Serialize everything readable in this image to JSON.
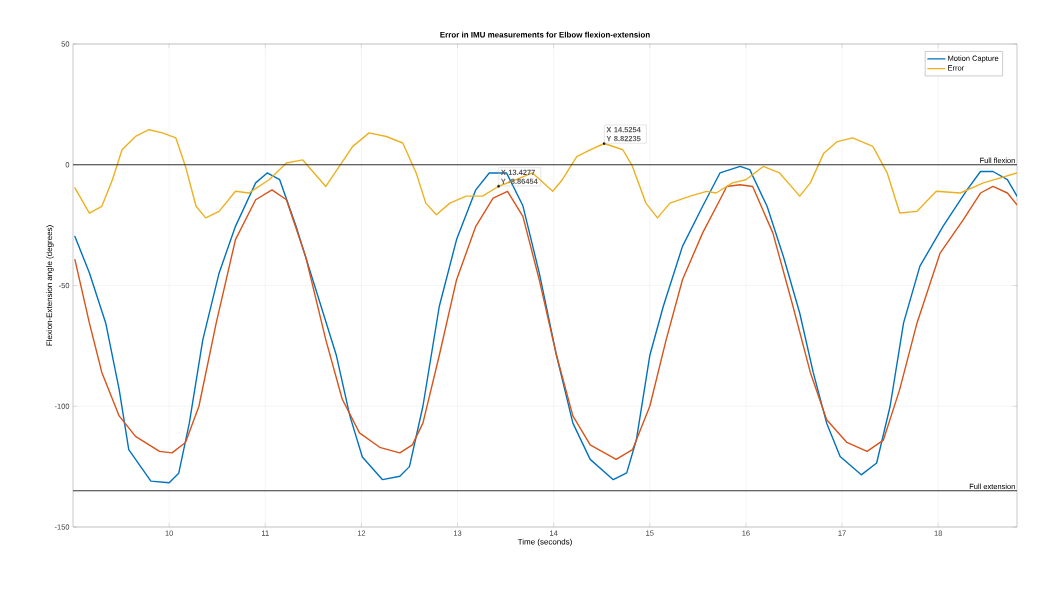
{
  "chart_data": {
    "type": "line",
    "title": "Error in IMU measurements for Elbow flexion-extension",
    "xlabel": "Time (seconds)",
    "ylabel": "Flexion-Extension angle (degrees)",
    "xlim": [
      9,
      18.82
    ],
    "ylim": [
      -150,
      50
    ],
    "xticks": [
      10,
      11,
      12,
      13,
      14,
      15,
      16,
      17,
      18
    ],
    "yticks": [
      -150,
      -100,
      -50,
      0,
      50
    ],
    "grid": true,
    "legend": "top right",
    "series": [
      {
        "name": "Motion Capture",
        "color": "#0072bd",
        "x": [
          9.02,
          9.17,
          9.34,
          9.48,
          9.58,
          9.81,
          10.0,
          10.1,
          10.21,
          10.35,
          10.52,
          10.69,
          10.9,
          11.02,
          11.15,
          11.32,
          11.56,
          11.74,
          11.88,
          12.01,
          12.22,
          12.4,
          12.5,
          12.64,
          12.81,
          12.99,
          13.19,
          13.33,
          13.51,
          13.68,
          13.85,
          14.03,
          14.2,
          14.38,
          14.62,
          14.76,
          14.86,
          15.0,
          15.14,
          15.34,
          15.55,
          15.73,
          15.94,
          16.04,
          16.22,
          16.39,
          16.56,
          16.7,
          16.84,
          16.98,
          17.2,
          17.36,
          17.5,
          17.64,
          17.81,
          18.05,
          18.3,
          18.44,
          18.57,
          18.72,
          18.82
        ],
        "values": [
          -29.7,
          -44.7,
          -65.5,
          -93,
          -118,
          -131,
          -131.7,
          -127.7,
          -107,
          -72.5,
          -44.8,
          -25.5,
          -7.5,
          -3.4,
          -6.2,
          -25.5,
          -56,
          -79,
          -104,
          -121,
          -130.4,
          -129,
          -125,
          -100,
          -58.7,
          -31,
          -10.4,
          -3.4,
          -3.4,
          -17,
          -44.8,
          -79,
          -107,
          -122,
          -130.4,
          -127.6,
          -114,
          -79,
          -58.7,
          -33.8,
          -17.2,
          -3.4,
          -0.7,
          -2,
          -17.2,
          -38,
          -61.5,
          -86,
          -107,
          -120.8,
          -128.4,
          -123.5,
          -100,
          -65.5,
          -42,
          -25.5,
          -10.4,
          -2.8,
          -2.8,
          -6.2,
          -13
        ]
      },
      {
        "color": "#d95319",
        "x": [
          9.02,
          9.17,
          9.3,
          9.48,
          9.65,
          9.9,
          10.03,
          10.17,
          10.31,
          10.49,
          10.69,
          10.9,
          11.07,
          11.22,
          11.42,
          11.63,
          11.8,
          11.98,
          12.19,
          12.4,
          12.53,
          12.64,
          12.81,
          12.99,
          13.19,
          13.37,
          13.52,
          13.68,
          13.85,
          14.03,
          14.2,
          14.38,
          14.65,
          14.82,
          15.0,
          15.17,
          15.34,
          15.55,
          15.73,
          15.8,
          15.94,
          16.07,
          16.28,
          16.49,
          16.67,
          16.84,
          17.05,
          17.26,
          17.43,
          17.6,
          17.78,
          18.02,
          18.26,
          18.44,
          18.57,
          18.72,
          18.82
        ],
        "values": [
          -39.3,
          -65.5,
          -86,
          -104,
          -112.5,
          -118.7,
          -119.3,
          -115,
          -100,
          -65.5,
          -31,
          -14.5,
          -10.4,
          -14.5,
          -38,
          -72.5,
          -97,
          -111,
          -117,
          -119.3,
          -116,
          -107,
          -79,
          -47.6,
          -25.5,
          -13.8,
          -11,
          -21.4,
          -47.6,
          -79,
          -104,
          -116,
          -122,
          -118,
          -100,
          -72.5,
          -47.6,
          -28.2,
          -14.5,
          -9,
          -8.3,
          -9,
          -28.2,
          -58.7,
          -86,
          -105.6,
          -115,
          -118.7,
          -114,
          -93,
          -65.5,
          -36.6,
          -22.8,
          -11.7,
          -9,
          -11.7,
          -16.6
        ]
      },
      {
        "name": "Error",
        "color": "#edb120",
        "x": [
          9.02,
          9.17,
          9.3,
          9.41,
          9.51,
          9.65,
          9.79,
          9.93,
          10.07,
          10.17,
          10.28,
          10.38,
          10.52,
          10.69,
          10.83,
          11.04,
          11.22,
          11.39,
          11.63,
          11.77,
          11.91,
          12.08,
          12.26,
          12.43,
          12.57,
          12.67,
          12.78,
          12.92,
          13.09,
          13.26,
          13.4277,
          13.61,
          13.78,
          13.99,
          14.09,
          14.24,
          14.38,
          14.5254,
          14.72,
          14.82,
          14.96,
          15.08,
          15.21,
          15.42,
          15.59,
          15.69,
          15.86,
          16.0,
          16.18,
          16.35,
          16.56,
          16.67,
          16.81,
          16.95,
          17.11,
          17.32,
          17.47,
          17.6,
          17.78,
          17.98,
          18.23,
          18.47,
          18.82
        ],
        "values": [
          -9.6,
          -20,
          -17.2,
          -6.2,
          6.2,
          11.7,
          14.5,
          13.2,
          11.1,
          -0.7,
          -17.2,
          -22,
          -19.3,
          -11,
          -11.7,
          -6.2,
          0.7,
          2,
          -9,
          -0.7,
          7.6,
          13.2,
          11.7,
          9,
          -3.4,
          -15.9,
          -20.7,
          -15.9,
          -13,
          -13,
          -8.9,
          -6.2,
          -3.4,
          -11,
          -6.2,
          3.4,
          6.2,
          8.8,
          6.2,
          -0.7,
          -15.9,
          -22,
          -15.9,
          -13,
          -11,
          -11.7,
          -7.5,
          -6.2,
          -0.7,
          -3.4,
          -13,
          -7.5,
          4.8,
          9.6,
          11.1,
          7.6,
          -3.4,
          -20,
          -19.3,
          -11,
          -11.7,
          -7.5,
          -3.4
        ]
      }
    ],
    "ref_lines": [
      {
        "axis": "y",
        "value": 0,
        "label": "Full flexion",
        "color": "#333333"
      },
      {
        "axis": "y",
        "value": -135,
        "label": "Full extension",
        "color": "#333333"
      }
    ],
    "annotations": [
      {
        "text": "X 13.4277 Y -8.86454",
        "x": 13.4277,
        "y": -8.86454
      },
      {
        "text": "X 14.5254 Y 8.82235",
        "x": 14.5254,
        "y": 8.82235
      }
    ]
  }
}
